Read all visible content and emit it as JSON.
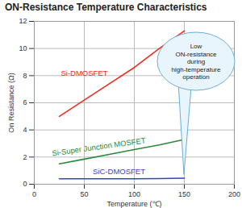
{
  "chart_data": {
    "type": "line",
    "title": "ON-Resistance Temperature Characteristics",
    "x_label": "Temperature (℃)",
    "y_label": "On Resistance (Ω)",
    "x": [
      25,
      50,
      75,
      100,
      125,
      150
    ],
    "series": [
      {
        "name": "Si-DMOSFET",
        "color": "#ee2b1e",
        "values": [
          5.0,
          6.2,
          7.4,
          8.6,
          10.0,
          11.3
        ]
      },
      {
        "name": "Si-Super Junction MOSFET",
        "color": "#2a8a3a",
        "values": [
          1.5,
          1.85,
          2.2,
          2.55,
          2.9,
          3.3
        ]
      },
      {
        "name": "SiC-DMOSFET",
        "color": "#3344cc",
        "values": [
          0.4,
          0.4,
          0.4,
          0.4,
          0.42,
          0.45
        ]
      }
    ],
    "annotations": [
      "Low\nON-resistance\nduring\nhigh-temperature\noperation"
    ],
    "xlim": [
      0,
      200
    ],
    "xticks": [
      0,
      50,
      100,
      150,
      200
    ],
    "ylim": [
      0,
      12
    ],
    "yticks": [
      0,
      2,
      4,
      6,
      8,
      10,
      12
    ],
    "grid": true
  }
}
